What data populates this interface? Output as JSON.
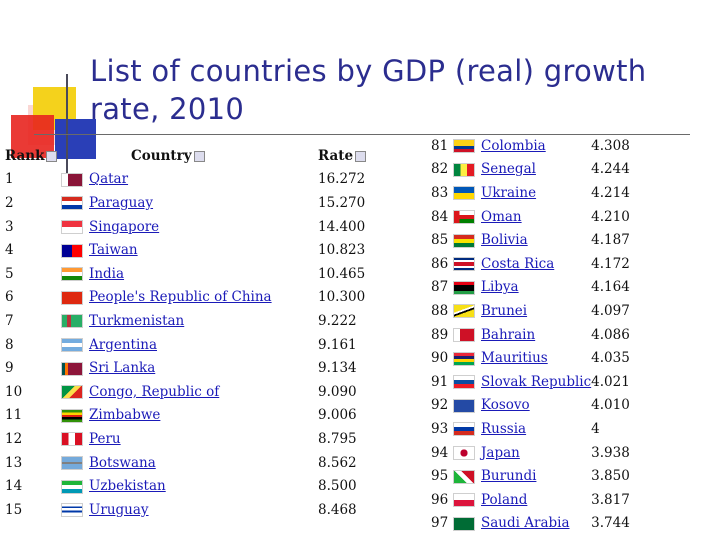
{
  "title": "List of countries by GDP (real) growth rate, 2010",
  "headers": {
    "rank": "Rank",
    "country": "Country",
    "rate": "Rate"
  },
  "left_rows": [
    {
      "rank": "1",
      "country": "Qatar",
      "rate": "16.272",
      "flag": "linear-gradient(90deg,#ffffff 0 30%,#8a1538 30% 100%)"
    },
    {
      "rank": "2",
      "country": "Paraguay",
      "rate": "15.270",
      "flag": "linear-gradient(#d52b1e 0 33%,#ffffff 33% 66%,#0038a8 66% 100%)"
    },
    {
      "rank": "3",
      "country": "Singapore",
      "rate": "14.400",
      "flag": "linear-gradient(#ef3340 0 50%,#ffffff 50% 100%)"
    },
    {
      "rank": "4",
      "country": "Taiwan",
      "rate": "10.823",
      "flag": "linear-gradient(90deg,#000095 0 50%,#fe0000 50% 100%)"
    },
    {
      "rank": "5",
      "country": "India",
      "rate": "10.465",
      "flag": "linear-gradient(#ff9933 0 33%,#ffffff 33% 66%,#138808 66% 100%)"
    },
    {
      "rank": "6",
      "country": "People's Republic of China",
      "rate": "10.300",
      "flag": "linear-gradient(#de2910,#de2910)"
    },
    {
      "rank": "7",
      "country": "Turkmenistan",
      "rate": "9.222",
      "flag": "linear-gradient(90deg,#28ae66 0 25%,#b8333b 25% 45%,#28ae66 45% 100%)"
    },
    {
      "rank": "8",
      "country": "Argentina",
      "rate": "9.161",
      "flag": "linear-gradient(#74acdf 0 33%,#ffffff 33% 66%,#74acdf 66% 100%)"
    },
    {
      "rank": "9",
      "country": "Sri Lanka",
      "rate": "9.134",
      "flag": "linear-gradient(90deg,#00534e 0 15%,#ff7300 15% 30%,#8d153a 30% 100%)"
    },
    {
      "rank": "10",
      "country": "Congo, Republic of",
      "rate": "9.090",
      "flag": "linear-gradient(135deg,#009543 0 40%,#fbde4a 40% 60%,#dc241f 60% 100%)"
    },
    {
      "rank": "11",
      "country": "Zimbabwe",
      "rate": "9.006",
      "flag": "linear-gradient(#319208 0 20%,#ffd200 20% 40%,#de2010 40% 60%,#000000 60% 80%,#319208 80% 100%)"
    },
    {
      "rank": "12",
      "country": "Peru",
      "rate": "8.795",
      "flag": "linear-gradient(90deg,#d91023 0 33%,#ffffff 33% 66%,#d91023 66% 100%)"
    },
    {
      "rank": "13",
      "country": "Botswana",
      "rate": "8.562",
      "flag": "linear-gradient(#75aadb 0 40%,#ffffff 40% 45%,#000000 45% 55%,#ffffff 55% 60%,#75aadb 60% 100%)"
    },
    {
      "rank": "14",
      "country": "Uzbekistan",
      "rate": "8.500",
      "flag": "linear-gradient(#1eb53a 0 33%,#ffffff 33% 66%,#0099b5 66% 100%)"
    },
    {
      "rank": "15",
      "country": "Uruguay",
      "rate": "8.468",
      "flag": "linear-gradient(#ffffff 0 20%,#0038a8 20% 35%,#ffffff 35% 55%,#0038a8 55% 70%,#ffffff 70% 100%)"
    }
  ],
  "right_rows": [
    {
      "rank": "81",
      "country": "Colombia",
      "rate": "4.308",
      "flag": "linear-gradient(#fcd116 0 50%,#003893 50% 75%,#ce1126 75% 100%)"
    },
    {
      "rank": "82",
      "country": "Senegal",
      "rate": "4.244",
      "flag": "linear-gradient(90deg,#00853f 0 33%,#fdef42 33% 66%,#e31b23 66% 100%)"
    },
    {
      "rank": "83",
      "country": "Ukraine",
      "rate": "4.214",
      "flag": "linear-gradient(#0057b7 0 50%,#ffd700 50% 100%)"
    },
    {
      "rank": "84",
      "country": "Oman",
      "rate": "4.210",
      "flag": "linear-gradient(90deg,#db161b 0 28%,transparent 28%),linear-gradient(#ffffff 0 33%,#db161b 33% 66%,#008000 66% 100%)"
    },
    {
      "rank": "85",
      "country": "Bolivia",
      "rate": "4.187",
      "flag": "linear-gradient(#d52b1e 0 33%,#f9e300 33% 66%,#007934 66% 100%)"
    },
    {
      "rank": "86",
      "country": "Costa Rica",
      "rate": "4.172",
      "flag": "linear-gradient(#002b7f 0 17%,#ffffff 17% 33%,#ce1126 33% 67%,#ffffff 67% 83%,#002b7f 83% 100%)"
    },
    {
      "rank": "87",
      "country": "Libya",
      "rate": "4.164",
      "flag": "linear-gradient(#e70013 0 25%,#000000 25% 75%,#239e46 75% 100%)"
    },
    {
      "rank": "88",
      "country": "Brunei",
      "rate": "4.097",
      "flag": "linear-gradient(160deg,#f7e017 0 40%,#ffffff 40% 50%,#000000 50% 60%,#f7e017 60% 100%)"
    },
    {
      "rank": "89",
      "country": "Bahrain",
      "rate": "4.086",
      "flag": "linear-gradient(90deg,#ffffff 0 30%,#ce1126 30% 100%)"
    },
    {
      "rank": "90",
      "country": "Mauritius",
      "rate": "4.035",
      "flag": "linear-gradient(#ea2839 0 25%,#1a206d 25% 50%,#ffd500 50% 75%,#00a551 75% 100%)"
    },
    {
      "rank": "91",
      "country": "Slovak Republic",
      "rate": "4.021",
      "flag": "linear-gradient(#ffffff 0 33%,#0b4ea2 33% 66%,#ee1c25 66% 100%)"
    },
    {
      "rank": "92",
      "country": "Kosovo",
      "rate": "4.010",
      "flag": "linear-gradient(#244aa5,#244aa5)"
    },
    {
      "rank": "93",
      "country": "Russia",
      "rate": "4",
      "flag": "linear-gradient(#ffffff 0 33%,#0039a6 33% 66%,#d52b1e 66% 100%)"
    },
    {
      "rank": "94",
      "country": "Japan",
      "rate": "3.938",
      "flag": "radial-gradient(circle,#bc002d 0 30%,#ffffff 32% 100%)"
    },
    {
      "rank": "95",
      "country": "Burundi",
      "rate": "3.850",
      "flag": "linear-gradient(45deg,#1eb53a 0 40%,#ffffff 40% 60%,#ce1126 60% 100%)"
    },
    {
      "rank": "96",
      "country": "Poland",
      "rate": "3.817",
      "flag": "linear-gradient(#ffffff 0 50%,#dc143c 50% 100%)"
    },
    {
      "rank": "97",
      "country": "Saudi Arabia",
      "rate": "3.744",
      "flag": "linear-gradient(#006c35,#006c35)"
    }
  ]
}
